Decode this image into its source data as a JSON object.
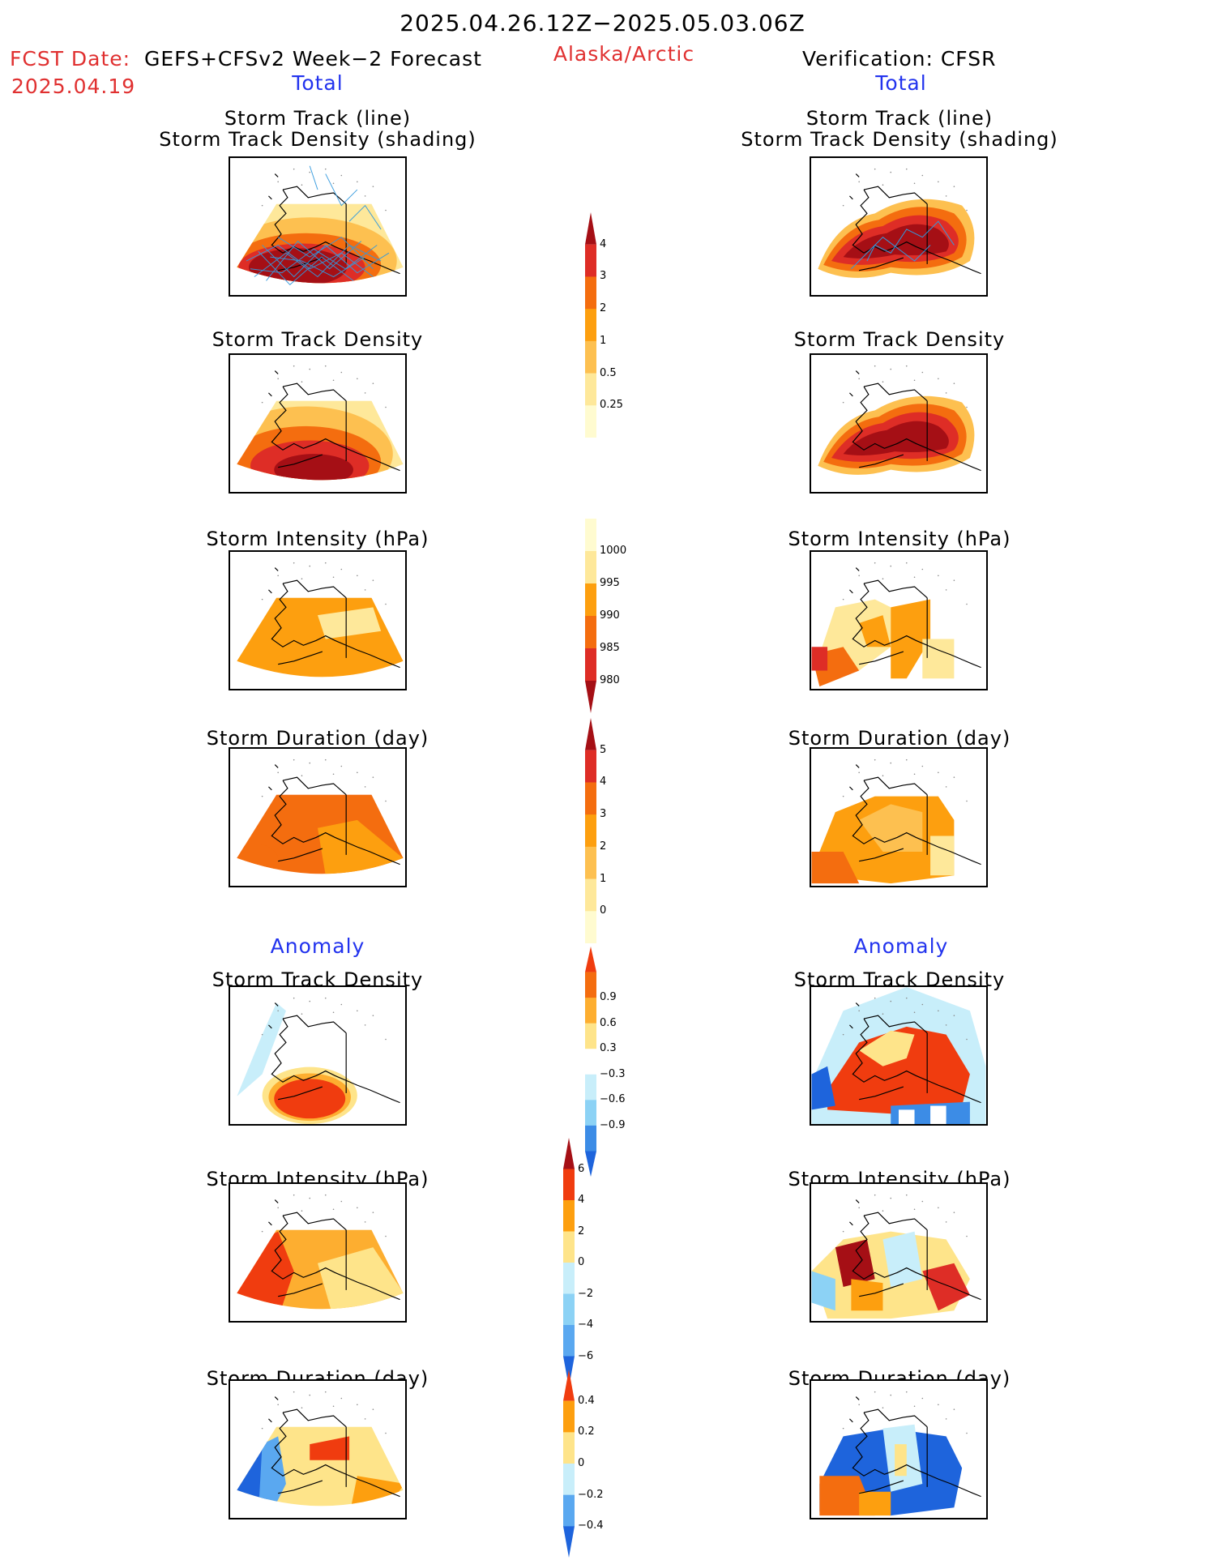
{
  "header": {
    "title": "2025.04.26.12Z−2025.05.03.06Z",
    "region": "Alaska/Arctic",
    "fcst_label": "FCST Date:",
    "fcst_model": "GEFS+CFSv2 Week−2 Forecast",
    "fcst_date": "2025.04.19",
    "verification": "Verification: CFSR"
  },
  "left_column": {
    "total_heading": "Total",
    "anomaly_heading": "Anomaly",
    "panels": [
      {
        "title_line1": "Storm Track (line)",
        "title_line2": "Storm Track Density (shading)"
      },
      {
        "title_line1": "Storm Track Density"
      },
      {
        "title_line1": "Storm Intensity (hPa)"
      },
      {
        "title_line1": "Storm Duration (day)"
      },
      {
        "title_line1": "Storm Track Density"
      },
      {
        "title_line1": "Storm Intensity (hPa)"
      },
      {
        "title_line1": "Storm Duration (day)"
      }
    ]
  },
  "right_column": {
    "total_heading": "Total",
    "anomaly_heading": "Anomaly",
    "panels": [
      {
        "title_line1": "Storm Track (line)",
        "title_line2": "Storm Track Density (shading)"
      },
      {
        "title_line1": "Storm Track Density"
      },
      {
        "title_line1": "Storm Intensity (hPa)"
      },
      {
        "title_line1": "Storm Duration (day)"
      },
      {
        "title_line1": "Storm Track Density"
      },
      {
        "title_line1": "Storm Intensity (hPa)"
      },
      {
        "title_line1": "Storm Duration (day)"
      }
    ]
  },
  "colorbars": [
    {
      "name": "track-density",
      "labels": [
        "4",
        "3",
        "2",
        "1",
        "0.5",
        "0.25"
      ],
      "colors": [
        "#a50f15",
        "#de2d26",
        "#f46d0f",
        "#fd9f0f",
        "#fdc050",
        "#fee89a",
        "#fffbd0"
      ]
    },
    {
      "name": "intensity",
      "labels": [
        "1000",
        "995",
        "990",
        "985",
        "980"
      ],
      "colors": [
        "#fffbd0",
        "#fee89a",
        "#fd9f0f",
        "#f46d0f",
        "#de2d26",
        "#a50f15"
      ]
    },
    {
      "name": "duration",
      "labels": [
        "5",
        "4",
        "3",
        "2",
        "1",
        "0"
      ],
      "colors": [
        "#a50f15",
        "#de2d26",
        "#f46d0f",
        "#fd9f0f",
        "#fdc050",
        "#fee89a",
        "#fffbd0"
      ]
    },
    {
      "name": "anom-density",
      "labels": [
        "0.9",
        "0.6",
        "0.3",
        "−0.3",
        "−0.6",
        "−0.9"
      ],
      "colors": [
        "#f03c0f",
        "#f46d0f",
        "#fdae30",
        "#fee48a",
        "#ffffff",
        "#c8eefa",
        "#8cd2f5",
        "#3c8ce6",
        "#1e64dc"
      ]
    },
    {
      "name": "anom-intensity",
      "labels": [
        "6",
        "4",
        "2",
        "0",
        "−2",
        "−4",
        "−6"
      ],
      "colors": [
        "#a50f15",
        "#f03c0f",
        "#fd9f0f",
        "#fee48a",
        "#c8eefa",
        "#8cd2f5",
        "#5aa8f0",
        "#1e64dc"
      ]
    },
    {
      "name": "anom-duration",
      "labels": [
        "0.4",
        "0.2",
        "0",
        "−0.2",
        "−0.4"
      ],
      "colors": [
        "#f03c0f",
        "#fd9f0f",
        "#fee48a",
        "#c8eefa",
        "#5aa8f0",
        "#1e64dc"
      ]
    }
  ]
}
